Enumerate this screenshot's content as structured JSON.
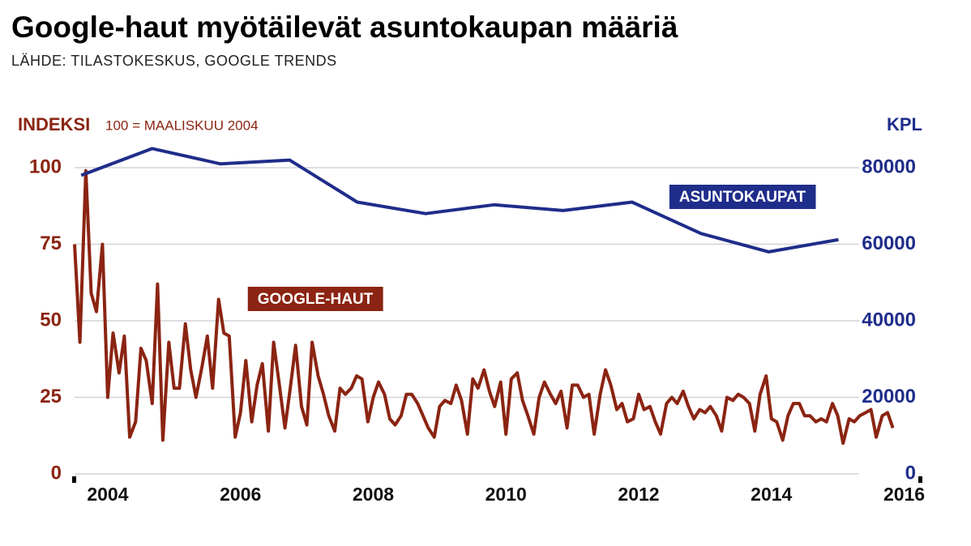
{
  "chart_data": {
    "type": "line",
    "title": "Google-haut myötäilevät asuntokaupan määriä",
    "subtitle": "LÄHDE: TILASTOKESKUS, GOOGLE TRENDS",
    "y_label": "INDEKSI",
    "y_note": "100 = MAALISKUU 2004",
    "y2_label": "KPL",
    "xlim": [
      2004,
      2016.75
    ],
    "xticks": [
      {
        "value": 2004.5,
        "label": "2004"
      },
      {
        "value": 2006.5,
        "label": "2006"
      },
      {
        "value": 2008.5,
        "label": "2008"
      },
      {
        "value": 2010.5,
        "label": "2010"
      },
      {
        "value": 2012.5,
        "label": "2012"
      },
      {
        "value": 2014.5,
        "label": "2014"
      },
      {
        "value": 2016.5,
        "label": "2016"
      }
    ],
    "ylim": [
      0,
      100
    ],
    "yticks": [
      0,
      25,
      50,
      75,
      100
    ],
    "y2lim": [
      0,
      80000
    ],
    "y2ticks": [
      0,
      20000,
      40000,
      60000,
      80000
    ],
    "grid": true,
    "series": [
      {
        "name": "GOOGLE-HAUT",
        "color": "#8b2412",
        "x": [
          2004,
          2004.08,
          2004.17,
          2004.25,
          2004.33,
          2004.42,
          2004.5,
          2004.58,
          2004.67,
          2004.75,
          2004.83,
          2004.92,
          2005,
          2005.08,
          2005.17,
          2005.25,
          2005.33,
          2005.42,
          2005.5,
          2005.58,
          2005.67,
          2005.75,
          2005.83,
          2005.92,
          2006,
          2006.08,
          2006.17,
          2006.25,
          2006.33,
          2006.42,
          2006.5,
          2006.58,
          2006.67,
          2006.75,
          2006.83,
          2006.92,
          2007,
          2007.08,
          2007.17,
          2007.25,
          2007.33,
          2007.42,
          2007.5,
          2007.58,
          2007.67,
          2007.75,
          2007.83,
          2007.92,
          2008,
          2008.08,
          2008.17,
          2008.25,
          2008.33,
          2008.42,
          2008.5,
          2008.58,
          2008.67,
          2008.75,
          2008.83,
          2008.92,
          2009,
          2009.08,
          2009.17,
          2009.25,
          2009.33,
          2009.42,
          2009.5,
          2009.58,
          2009.67,
          2009.75,
          2009.83,
          2009.92,
          2010,
          2010.08,
          2010.17,
          2010.25,
          2010.33,
          2010.42,
          2010.5,
          2010.58,
          2010.67,
          2010.75,
          2010.83,
          2010.92,
          2011,
          2011.08,
          2011.17,
          2011.25,
          2011.33,
          2011.42,
          2011.5,
          2011.58,
          2011.67,
          2011.75,
          2011.83,
          2011.92,
          2012,
          2012.08,
          2012.17,
          2012.25,
          2012.33,
          2012.42,
          2012.5,
          2012.58,
          2012.67,
          2012.75,
          2012.83,
          2012.92,
          2013,
          2013.08,
          2013.17,
          2013.25,
          2013.33,
          2013.42,
          2013.5,
          2013.58,
          2013.67,
          2013.75,
          2013.83,
          2013.92,
          2014,
          2014.08,
          2014.17,
          2014.25,
          2014.33,
          2014.42,
          2014.5,
          2014.58,
          2014.67,
          2014.75,
          2014.83,
          2014.92,
          2015,
          2015.08,
          2015.17,
          2015.25,
          2015.33,
          2015.42,
          2015.5,
          2015.58,
          2015.67,
          2015.75,
          2015.83,
          2015.92,
          2016,
          2016.08,
          2016.17,
          2016.25,
          2016.33
        ],
        "values": [
          75,
          43,
          99,
          59,
          53,
          75,
          25,
          46,
          33,
          45,
          12,
          17,
          41,
          37,
          23,
          62,
          11,
          43,
          28,
          28,
          49,
          34,
          25,
          35,
          45,
          28,
          57,
          46,
          45,
          12,
          20,
          37,
          17,
          29,
          36,
          14,
          43,
          30,
          15,
          28,
          42,
          22,
          16,
          43,
          32,
          26,
          19,
          14,
          28,
          26,
          28,
          32,
          31,
          17,
          25,
          30,
          26,
          18,
          16,
          19,
          26,
          26,
          23,
          19,
          15,
          12,
          22,
          24,
          23,
          29,
          24,
          13,
          31,
          28,
          34,
          27,
          22,
          30,
          13,
          31,
          33,
          24,
          19,
          13,
          25,
          30,
          26,
          23,
          27,
          15,
          29,
          29,
          25,
          26,
          13,
          26,
          34,
          29,
          21,
          23,
          17,
          18,
          26,
          21,
          22,
          17,
          13,
          23,
          25,
          23,
          27,
          22,
          18,
          21,
          20,
          22,
          19,
          14,
          25,
          24,
          26,
          25,
          23,
          14,
          26,
          32,
          18,
          17,
          11,
          19,
          23,
          23,
          19,
          19,
          17,
          18,
          17,
          23,
          19,
          10,
          18,
          17,
          19,
          20,
          21,
          12,
          19,
          20,
          15
        ]
      },
      {
        "name": "ASUNTOKAUPAT",
        "color": "#1f2d8a",
        "axis": "y2",
        "x": [
          2004.1,
          2005.17,
          2006.2,
          2007.24,
          2008.26,
          2009.29,
          2010.32,
          2011.36,
          2012.4,
          2013.44,
          2014.46,
          2015.51
        ],
        "values": [
          78000,
          85000,
          81000,
          82000,
          71000,
          68000,
          70300,
          68800,
          71000,
          62800,
          58000,
          61200
        ]
      }
    ]
  }
}
